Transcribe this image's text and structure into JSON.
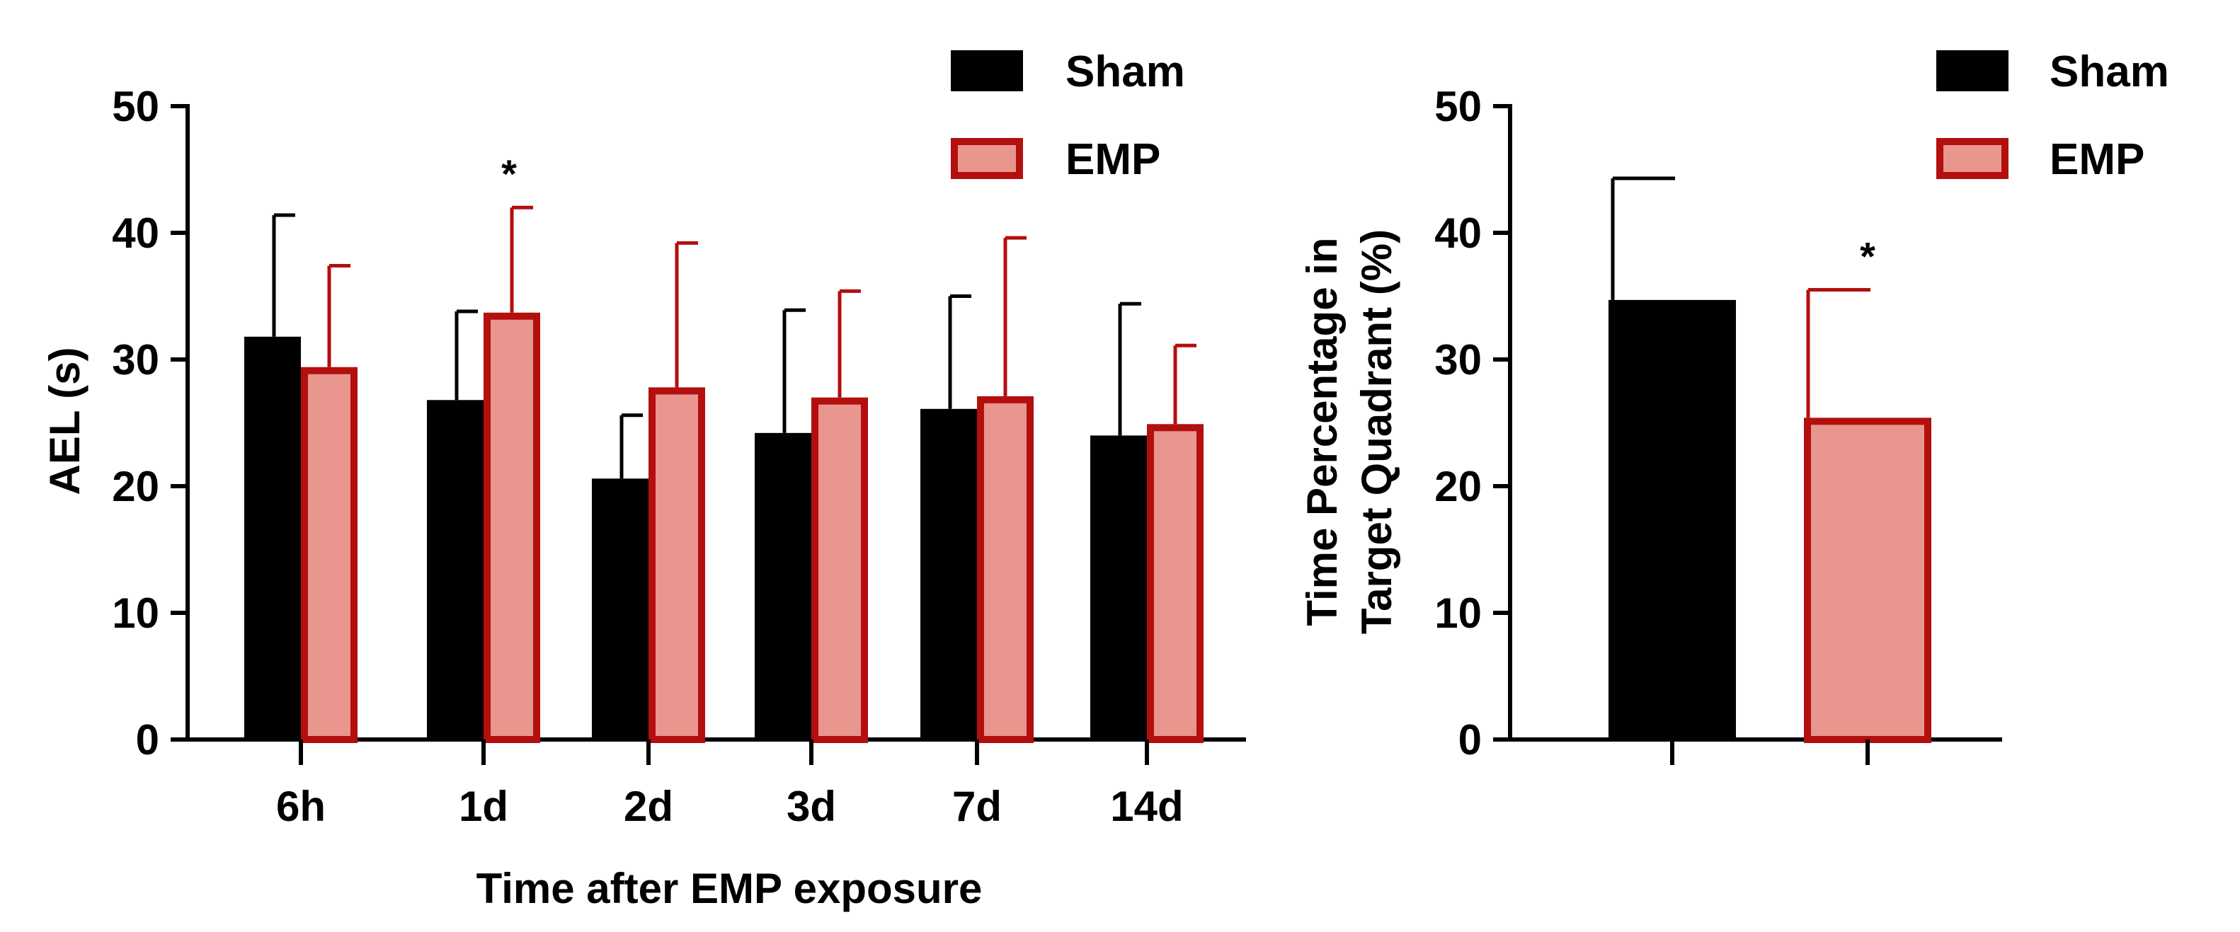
{
  "colors": {
    "sham_fill": "#000000",
    "emp_fill": "#e8968e",
    "emp_stroke": "#b30f0f",
    "axis": "#000000"
  },
  "chart_data": [
    {
      "type": "bar",
      "title": "",
      "xlabel": "Time after EMP exposure",
      "ylabel": "AEL (s)",
      "ylim": [
        0,
        50
      ],
      "yticks": [
        "0",
        "10",
        "20",
        "30",
        "40",
        "50"
      ],
      "categories": [
        "6h",
        "1d",
        "2d",
        "3d",
        "7d",
        "14d"
      ],
      "legend": [
        "Sham",
        "EMP"
      ],
      "legend_position": "top-right",
      "series": [
        {
          "name": "Sham",
          "values": [
            31.8,
            26.8,
            20.6,
            24.2,
            26.1,
            24.0
          ],
          "errors": [
            9.6,
            7.0,
            5.0,
            9.7,
            8.9,
            10.4
          ],
          "significance": [
            "",
            "",
            "",
            "",
            "",
            ""
          ]
        },
        {
          "name": "EMP",
          "values": [
            29.4,
            33.7,
            27.8,
            27.0,
            27.1,
            24.9
          ],
          "errors": [
            8.0,
            8.3,
            11.4,
            8.4,
            12.5,
            6.2
          ],
          "significance": [
            "",
            "*",
            "",
            "",
            "",
            ""
          ]
        }
      ]
    },
    {
      "type": "bar",
      "title": "",
      "xlabel": "",
      "ylabel_lines": [
        "Time Percentage in",
        "Target Quadrant (%)"
      ],
      "ylim": [
        0,
        50
      ],
      "yticks": [
        "0",
        "10",
        "20",
        "30",
        "40",
        "50"
      ],
      "categories": [
        "Sham",
        "EMP"
      ],
      "legend": [
        "Sham",
        "EMP"
      ],
      "legend_position": "top-right",
      "values": [
        34.7,
        25.4
      ],
      "errors": [
        9.6,
        10.1
      ],
      "significance": [
        "",
        "*"
      ]
    }
  ]
}
